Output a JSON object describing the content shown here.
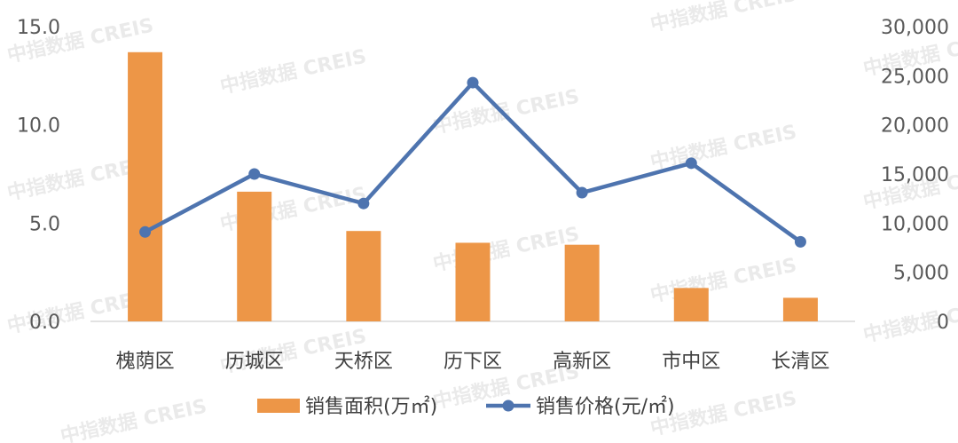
{
  "chart_data": {
    "type": "bar+line",
    "categories": [
      "槐荫区",
      "历城区",
      "天桥区",
      "历下区",
      "高新区",
      "市中区",
      "长清区"
    ],
    "series": [
      {
        "name": "销售面积(万㎡)",
        "type": "bar",
        "axis": "left",
        "color": "#ED9647",
        "values": [
          13.7,
          6.6,
          4.6,
          4.0,
          3.9,
          1.7,
          1.2
        ]
      },
      {
        "name": "销售价格(元/㎡)",
        "type": "line",
        "axis": "right",
        "color": "#4E74AF",
        "values": [
          9100,
          15000,
          12000,
          24300,
          13100,
          16100,
          8100
        ]
      }
    ],
    "y_left": {
      "ylim": [
        0,
        15
      ],
      "ticks": [
        "0.0",
        "5.0",
        "10.0",
        "15.0"
      ]
    },
    "y_right": {
      "ylim": [
        0,
        30000
      ],
      "ticks": [
        "0",
        "5,000",
        "10,000",
        "15,000",
        "20,000",
        "25,000",
        "30,000"
      ]
    },
    "legend_position": "bottom",
    "grid": false,
    "watermark": "中指数据 CREIS"
  }
}
